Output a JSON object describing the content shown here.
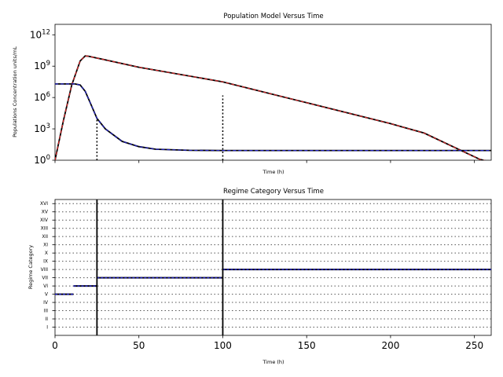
{
  "chart_data": [
    {
      "type": "line",
      "title": "Population Model Versus Time",
      "xlabel": "Time (h)",
      "ylabel": "Populations Concentration units/mL",
      "xlim": [
        0,
        260
      ],
      "ylim_log10": [
        0,
        13
      ],
      "yscale": "log",
      "x_ticks": [
        0,
        50,
        100,
        150,
        200,
        250
      ],
      "x_tick_labels_shown": false,
      "y_ticks": [
        {
          "exp": 0,
          "base": "10",
          "sup": "0"
        },
        {
          "exp": 3,
          "base": "10",
          "sup": "3"
        },
        {
          "exp": 6,
          "base": "10",
          "sup": "6"
        },
        {
          "exp": 9,
          "base": "10",
          "sup": "9"
        },
        {
          "exp": 12,
          "base": "10",
          "sup": "12"
        }
      ],
      "series": [
        {
          "color": "#000000",
          "overlay_color": "#d62728",
          "overlay_style": "dashed",
          "points_log10": [
            [
              0,
              0
            ],
            [
              5,
              3.8
            ],
            [
              10,
              7.2
            ],
            [
              15,
              9.5
            ],
            [
              18,
              9.98
            ],
            [
              20,
              9.95
            ],
            [
              50,
              8.9
            ],
            [
              100,
              7.5
            ],
            [
              150,
              5.5
            ],
            [
              200,
              3.5
            ],
            [
              220,
              2.6
            ],
            [
              253,
              0.1
            ],
            [
              260,
              -0.2
            ]
          ]
        },
        {
          "color": "#000000",
          "overlay_color": "#1f1fbf",
          "overlay_style": "dashed",
          "points_log10": [
            [
              0,
              7.3
            ],
            [
              12,
              7.3
            ],
            [
              15,
              7.2
            ],
            [
              18,
              6.6
            ],
            [
              21,
              5.5
            ],
            [
              25,
              4.0
            ],
            [
              30,
              3.0
            ],
            [
              40,
              1.8
            ],
            [
              50,
              1.3
            ],
            [
              60,
              1.05
            ],
            [
              80,
              0.95
            ],
            [
              100,
              0.93
            ],
            [
              150,
              0.93
            ],
            [
              200,
              0.93
            ],
            [
              260,
              0.93
            ]
          ]
        }
      ],
      "vlines_dotted": [
        {
          "x": 25,
          "y_top_log10": 4.0
        },
        {
          "x": 100,
          "y_top_log10": 6.2
        }
      ]
    },
    {
      "type": "line",
      "title": "Regime Category Versus Time",
      "xlabel": "Time (h)",
      "ylabel": "Regime Category",
      "xlim": [
        0,
        260
      ],
      "x_ticks": [
        0,
        50,
        100,
        150,
        200,
        250
      ],
      "x_tick_labels": [
        "0",
        "50",
        "100",
        "150",
        "200",
        "250"
      ],
      "categories": [
        "I",
        "II",
        "III",
        "IV",
        "V",
        "VI",
        "VII",
        "VIII",
        "IX",
        "X",
        "XI",
        "XII",
        "XIII",
        "XIV",
        "XV",
        "XVI"
      ],
      "grid": "dotted horizontal",
      "segments": [
        {
          "x0": 0,
          "x1": 11,
          "category": "V"
        },
        {
          "x0": 11,
          "x1": 25,
          "category": "VI"
        },
        {
          "x0": 25,
          "x1": 100,
          "category": "VII"
        },
        {
          "x0": 100,
          "x1": 260,
          "category": "VIII"
        }
      ],
      "segment_color": "#1f1fbf",
      "vlines_solid": [
        25,
        100
      ]
    }
  ]
}
